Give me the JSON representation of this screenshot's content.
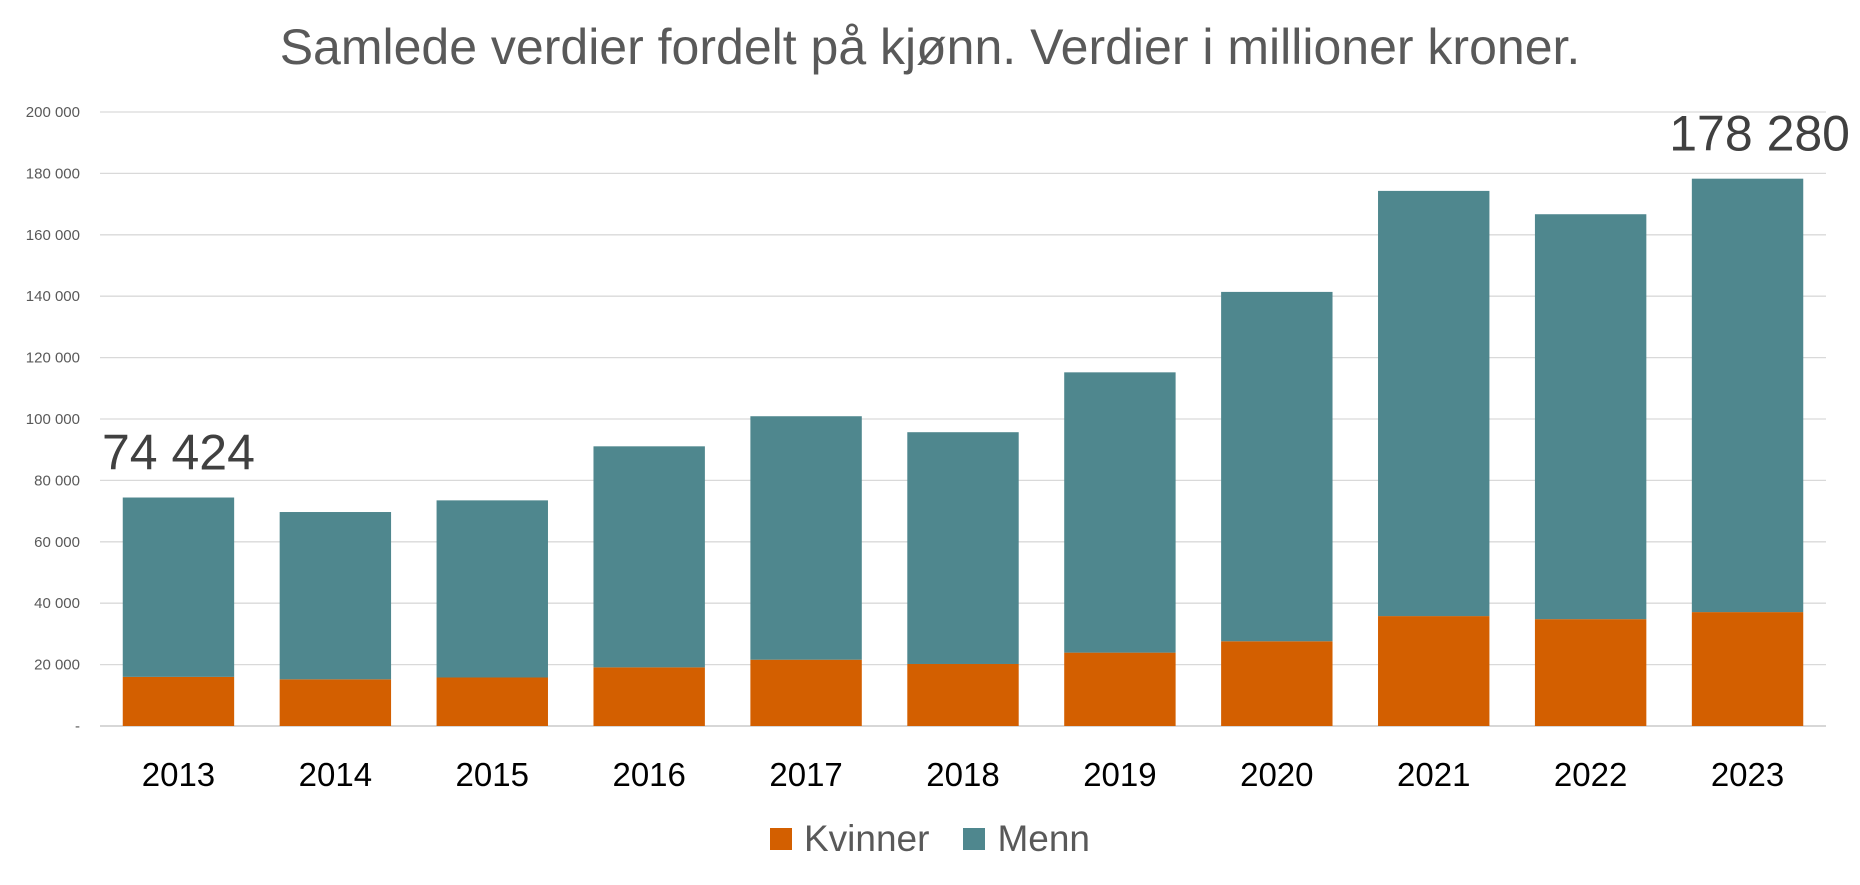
{
  "chart_data": {
    "type": "bar",
    "stacked": true,
    "title": "Samlede verdier fordelt på kjønn. Verdier i millioner kroner.",
    "categories": [
      "2013",
      "2014",
      "2015",
      "2016",
      "2017",
      "2018",
      "2019",
      "2020",
      "2021",
      "2022",
      "2023"
    ],
    "series": [
      {
        "name": "Kvinner",
        "color": "#D35F00",
        "values": [
          16000,
          15200,
          15800,
          19100,
          21600,
          20200,
          23900,
          27600,
          35800,
          34800,
          37100
        ]
      },
      {
        "name": "Menn",
        "color": "#4F878E",
        "values": [
          58424,
          54500,
          57700,
          72000,
          79300,
          75500,
          91300,
          113800,
          138500,
          131900,
          141180
        ]
      }
    ],
    "ylim": [
      0,
      200000
    ],
    "yticks": [
      0,
      20000,
      40000,
      60000,
      80000,
      100000,
      120000,
      140000,
      160000,
      180000,
      200000
    ],
    "ytick_labels": [
      "-",
      "20 000",
      "40 000",
      "60 000",
      "80 000",
      "100 000",
      "120 000",
      "140 000",
      "160 000",
      "180 000",
      "200 000"
    ],
    "grid": true,
    "legend": "bottom",
    "annotations": [
      {
        "category": "2013",
        "text": "74 424"
      },
      {
        "category": "2023",
        "text": "178 280"
      }
    ]
  }
}
